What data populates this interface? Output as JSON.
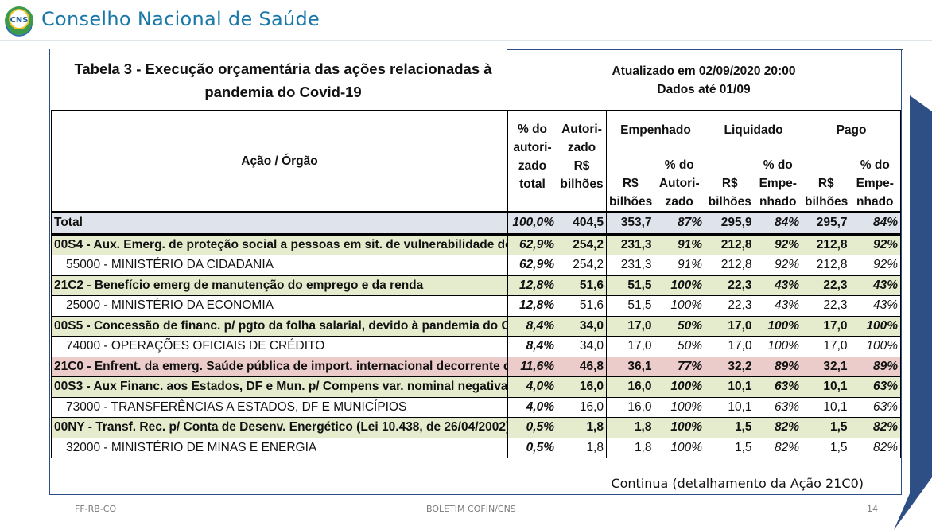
{
  "header": {
    "logo_text": "CNS",
    "org_name": "Conselho Nacional de Saúde"
  },
  "table_title": {
    "line1": "Tabela 3 - Execução orçamentária das ações relacionadas à",
    "line2": "pandemia do Covid-19"
  },
  "update_info": {
    "line1": "Atualizado em 02/09/2020 20:00",
    "line2": "Dados até 01/09"
  },
  "columns": {
    "acao_orgao": "Ação / Órgão",
    "pct_autorizado_total": "% do autori-zado total",
    "autorizado": "Autori-zado R$ bilhões",
    "empenhado": "Empenhado",
    "empenhado_rs": "R$ bilhões",
    "empenhado_pct": "% do Autori-zado",
    "liquidado": "Liquidado",
    "liquidado_rs": "R$ bilhões",
    "liquidado_pct": "% do Empe-nhado",
    "pago": "Pago",
    "pago_rs": "R$ bilhões",
    "pago_pct": "% do Empe-nhado"
  },
  "rows": [
    {
      "kind": "total",
      "code": "",
      "label": "Total",
      "pct_total": "100,0%",
      "autorizado": "404,5",
      "emp_rs": "353,7",
      "emp_pct": "87%",
      "liq_rs": "295,9",
      "liq_pct": "84%",
      "pago_rs": "295,7",
      "pago_pct": "84%"
    },
    {
      "kind": "acao",
      "code": "00S4",
      "label": " - Aux. Emerg. de proteção social a pessoas em sit. de vulnerabilidade devido",
      "pct_total": "62,9%",
      "autorizado": "254,2",
      "emp_rs": "231,3",
      "emp_pct": "91%",
      "liq_rs": "212,8",
      "liq_pct": "92%",
      "pago_rs": "212,8",
      "pago_pct": "92%"
    },
    {
      "kind": "org",
      "code": "",
      "label": "55000 - MINISTÉRIO DA CIDADANIA",
      "pct_total": "62,9%",
      "autorizado": "254,2",
      "emp_rs": "231,3",
      "emp_pct": "91%",
      "liq_rs": "212,8",
      "liq_pct": "92%",
      "pago_rs": "212,8",
      "pago_pct": "92%"
    },
    {
      "kind": "acao",
      "code": "21C2",
      "label": " - Benefício emerg de manutenção do emprego e da renda",
      "pct_total": "12,8%",
      "autorizado": "51,6",
      "emp_rs": "51,5",
      "emp_pct": "100%",
      "liq_rs": "22,3",
      "liq_pct": "43%",
      "pago_rs": "22,3",
      "pago_pct": "43%"
    },
    {
      "kind": "org",
      "code": "",
      "label": "25000 - MINISTÉRIO DA ECONOMIA",
      "pct_total": "12,8%",
      "autorizado": "51,6",
      "emp_rs": "51,5",
      "emp_pct": "100%",
      "liq_rs": "22,3",
      "liq_pct": "43%",
      "pago_rs": "22,3",
      "pago_pct": "43%"
    },
    {
      "kind": "acao",
      "code": "00S5",
      "label": " - Concessão de financ. p/ pgto da folha salarial, devido à pandemia do Covid",
      "pct_total": "8,4%",
      "autorizado": "34,0",
      "emp_rs": "17,0",
      "emp_pct": "50%",
      "liq_rs": "17,0",
      "liq_pct": "100%",
      "pago_rs": "17,0",
      "pago_pct": "100%"
    },
    {
      "kind": "org",
      "code": "",
      "label": "74000 - OPERAÇÕES OFICIAIS DE CRÉDITO",
      "pct_total": "8,4%",
      "autorizado": "34,0",
      "emp_rs": "17,0",
      "emp_pct": "50%",
      "liq_rs": "17,0",
      "liq_pct": "100%",
      "pago_rs": "17,0",
      "pago_pct": "100%"
    },
    {
      "kind": "highlight",
      "code": "21C0",
      "label": " - Enfrent. da emerg. Saúde pública de import. internacional decorrente do co",
      "pct_total": "11,6%",
      "autorizado": "46,8",
      "emp_rs": "36,1",
      "emp_pct": "77%",
      "liq_rs": "32,2",
      "liq_pct": "89%",
      "pago_rs": "32,1",
      "pago_pct": "89%"
    },
    {
      "kind": "acao",
      "code": "00S3",
      "label": " - Aux Financ. aos Estados, DF e Mun. p/ Compens var. nominal negativa de F",
      "pct_total": "4,0%",
      "autorizado": "16,0",
      "emp_rs": "16,0",
      "emp_pct": "100%",
      "liq_rs": "10,1",
      "liq_pct": "63%",
      "pago_rs": "10,1",
      "pago_pct": "63%"
    },
    {
      "kind": "org",
      "code": "",
      "label": "73000 - TRANSFERÊNCIAS A ESTADOS, DF E MUNICÍPIOS",
      "pct_total": "4,0%",
      "autorizado": "16,0",
      "emp_rs": "16,0",
      "emp_pct": "100%",
      "liq_rs": "10,1",
      "liq_pct": "63%",
      "pago_rs": "10,1",
      "pago_pct": "63%"
    },
    {
      "kind": "acao",
      "code": "00NY",
      "label": " - Transf. Rec. p/ Conta de Desenv. Energético (Lei 10.438, de 26/04/2002)",
      "pct_total": "0,5%",
      "autorizado": "1,8",
      "emp_rs": "1,8",
      "emp_pct": "100%",
      "liq_rs": "1,5",
      "liq_pct": "82%",
      "pago_rs": "1,5",
      "pago_pct": "82%"
    },
    {
      "kind": "org",
      "code": "",
      "label": "32000 - MINISTÉRIO DE MINAS E ENERGIA",
      "pct_total": "0,5%",
      "autorizado": "1,8",
      "emp_rs": "1,8",
      "emp_pct": "100%",
      "liq_rs": "1,5",
      "liq_pct": "82%",
      "pago_rs": "1,5",
      "pago_pct": "82%"
    }
  ],
  "continua": "Continua (detalhamento da Ação 21C0)",
  "footer": {
    "left": "FF-RB-CO",
    "center": "BOLETIM COFIN/CNS",
    "page": "14"
  },
  "colors": {
    "brand": "#1a78a8",
    "total_row": "#dfe3ec",
    "acao_row": "#e4eccd",
    "highlight_row": "#eccbcb",
    "deco_blue": "#2e4f86"
  }
}
